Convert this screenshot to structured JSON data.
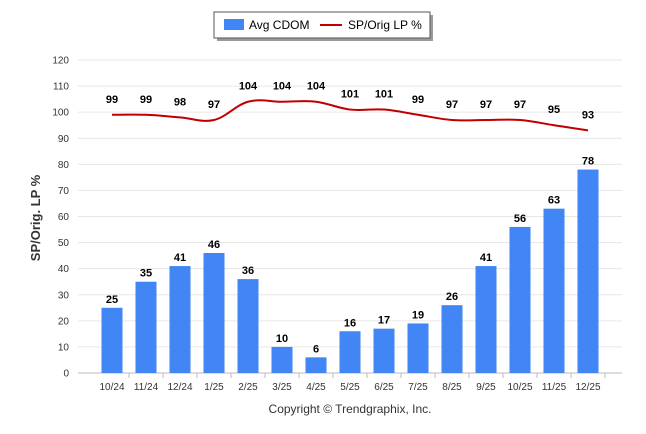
{
  "chart_data": {
    "type": "bar",
    "ylabel": "SP/Orig. LP %",
    "xlabel": "",
    "ylim": [
      0,
      120
    ],
    "yticks": [
      0,
      10,
      20,
      30,
      40,
      50,
      60,
      70,
      80,
      90,
      100,
      110,
      120
    ],
    "grid": true,
    "legend_position": "top-center",
    "categories": [
      "10/24",
      "11/24",
      "12/24",
      "1/25",
      "2/25",
      "3/25",
      "4/25",
      "5/25",
      "6/25",
      "7/25",
      "8/25",
      "9/25",
      "10/25",
      "11/25",
      "12/25"
    ],
    "series": [
      {
        "name": "Avg CDOM",
        "type": "bar",
        "color": "#4285F4",
        "values": [
          25,
          35,
          41,
          46,
          36,
          10,
          6,
          16,
          17,
          19,
          26,
          41,
          56,
          63,
          78
        ]
      },
      {
        "name": "SP/Orig LP %",
        "type": "line",
        "color": "#C00000",
        "values": [
          99,
          99,
          98,
          97,
          104,
          104,
          104,
          101,
          101,
          99,
          97,
          97,
          97,
          95,
          93
        ]
      }
    ]
  },
  "copyright": "Copyright © Trendgraphix, Inc."
}
